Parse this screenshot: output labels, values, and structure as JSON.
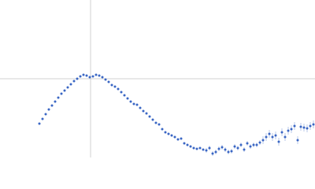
{
  "chart_data": {
    "type": "scatter",
    "xlim": [
      -115,
      285
    ],
    "ylim": [
      -100,
      100
    ],
    "reference_lines": {
      "x": 0,
      "y": 0
    },
    "reference_color": "#d0d0d0",
    "series": [
      {
        "color": "#3a66c4",
        "x": [
          -65,
          -61,
          -57,
          -53,
          -49,
          -45,
          -41,
          -37,
          -33,
          -29,
          -25,
          -21,
          -17,
          -13,
          -9,
          -5,
          -1,
          3,
          7,
          11,
          15,
          19,
          23,
          27,
          31,
          35,
          39,
          43,
          47,
          51,
          55,
          59,
          63,
          67,
          71,
          75,
          79,
          83,
          87,
          91,
          95,
          99,
          103,
          107,
          111,
          115,
          119,
          123,
          127,
          131,
          135,
          139,
          143,
          147,
          151,
          155,
          159,
          163,
          167,
          171,
          175,
          179,
          183,
          187,
          191,
          195,
          199,
          203,
          207,
          211,
          215,
          219,
          223,
          227,
          231,
          235,
          239,
          243,
          247,
          251,
          255,
          259,
          263,
          267,
          271,
          275,
          279,
          283
        ],
        "values": [
          -57,
          -51,
          -45,
          -39,
          -34,
          -29,
          -24,
          -19,
          -15,
          -11,
          -7,
          -3,
          0,
          3,
          5,
          4,
          2,
          3,
          5,
          4,
          2,
          -1,
          -4,
          -8,
          -10,
          -13,
          -17,
          -21,
          -25,
          -29,
          -32,
          -33,
          -37,
          -41,
          -44,
          -48,
          -52,
          -56,
          -58,
          -64,
          -68,
          -70,
          -72,
          -74,
          -77,
          -76,
          -82,
          -84,
          -86,
          -88,
          -89,
          -88,
          -90,
          -91,
          -88,
          -95,
          -93,
          -89,
          -87,
          -90,
          -93,
          -92,
          -86,
          -88,
          -84,
          -90,
          -82,
          -86,
          -84,
          -84,
          -81,
          -78,
          -74,
          -70,
          -74,
          -72,
          -80,
          -68,
          -74,
          -66,
          -64,
          -60,
          -78,
          -61,
          -62,
          -63,
          -60,
          -58
        ],
        "errors": [
          0.5,
          0.5,
          0.5,
          0.5,
          0.5,
          0.5,
          0.5,
          0.5,
          0.5,
          0.5,
          0.5,
          0.5,
          0.5,
          0.5,
          0.5,
          0.5,
          0.5,
          0.5,
          0.5,
          0.5,
          0.5,
          0.5,
          0.5,
          0.5,
          0.5,
          0.5,
          0.5,
          0.5,
          0.5,
          0.5,
          0.5,
          0.5,
          0.5,
          0.5,
          0.5,
          0.5,
          0.5,
          0.5,
          1.5,
          1.5,
          1.5,
          1.5,
          1.5,
          1.5,
          1.5,
          1.5,
          1.5,
          1.5,
          1.5,
          1.5,
          1.5,
          1.5,
          1.5,
          3,
          3,
          3,
          3,
          3,
          3,
          3,
          3,
          3,
          3,
          3,
          3,
          3,
          3,
          3,
          3,
          3,
          3,
          5,
          5,
          5,
          5,
          5,
          5,
          5,
          5,
          5,
          5,
          5,
          5,
          5,
          5,
          5,
          5,
          5
        ]
      }
    ]
  }
}
